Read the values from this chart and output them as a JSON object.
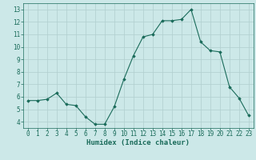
{
  "x": [
    0,
    1,
    2,
    3,
    4,
    5,
    6,
    7,
    8,
    9,
    10,
    11,
    12,
    13,
    14,
    15,
    16,
    17,
    18,
    19,
    20,
    21,
    22,
    23
  ],
  "y": [
    5.7,
    5.7,
    5.8,
    6.3,
    5.4,
    5.3,
    4.4,
    3.8,
    3.8,
    5.2,
    7.4,
    9.3,
    10.8,
    11.0,
    12.1,
    12.1,
    12.2,
    13.0,
    10.4,
    9.7,
    9.6,
    6.8,
    5.9,
    4.5
  ],
  "line_color": "#1a6b5a",
  "marker": "D",
  "marker_size": 1.8,
  "bg_color": "#cce8e8",
  "grid_color": "#b0cece",
  "xlabel": "Humidex (Indice chaleur)",
  "ylim": [
    3.5,
    13.5
  ],
  "xlim": [
    -0.5,
    23.5
  ],
  "yticks": [
    4,
    5,
    6,
    7,
    8,
    9,
    10,
    11,
    12,
    13
  ],
  "xticks": [
    0,
    1,
    2,
    3,
    4,
    5,
    6,
    7,
    8,
    9,
    10,
    11,
    12,
    13,
    14,
    15,
    16,
    17,
    18,
    19,
    20,
    21,
    22,
    23
  ],
  "tick_color": "#1a6b5a",
  "label_fontsize": 6.5,
  "tick_fontsize": 5.5
}
